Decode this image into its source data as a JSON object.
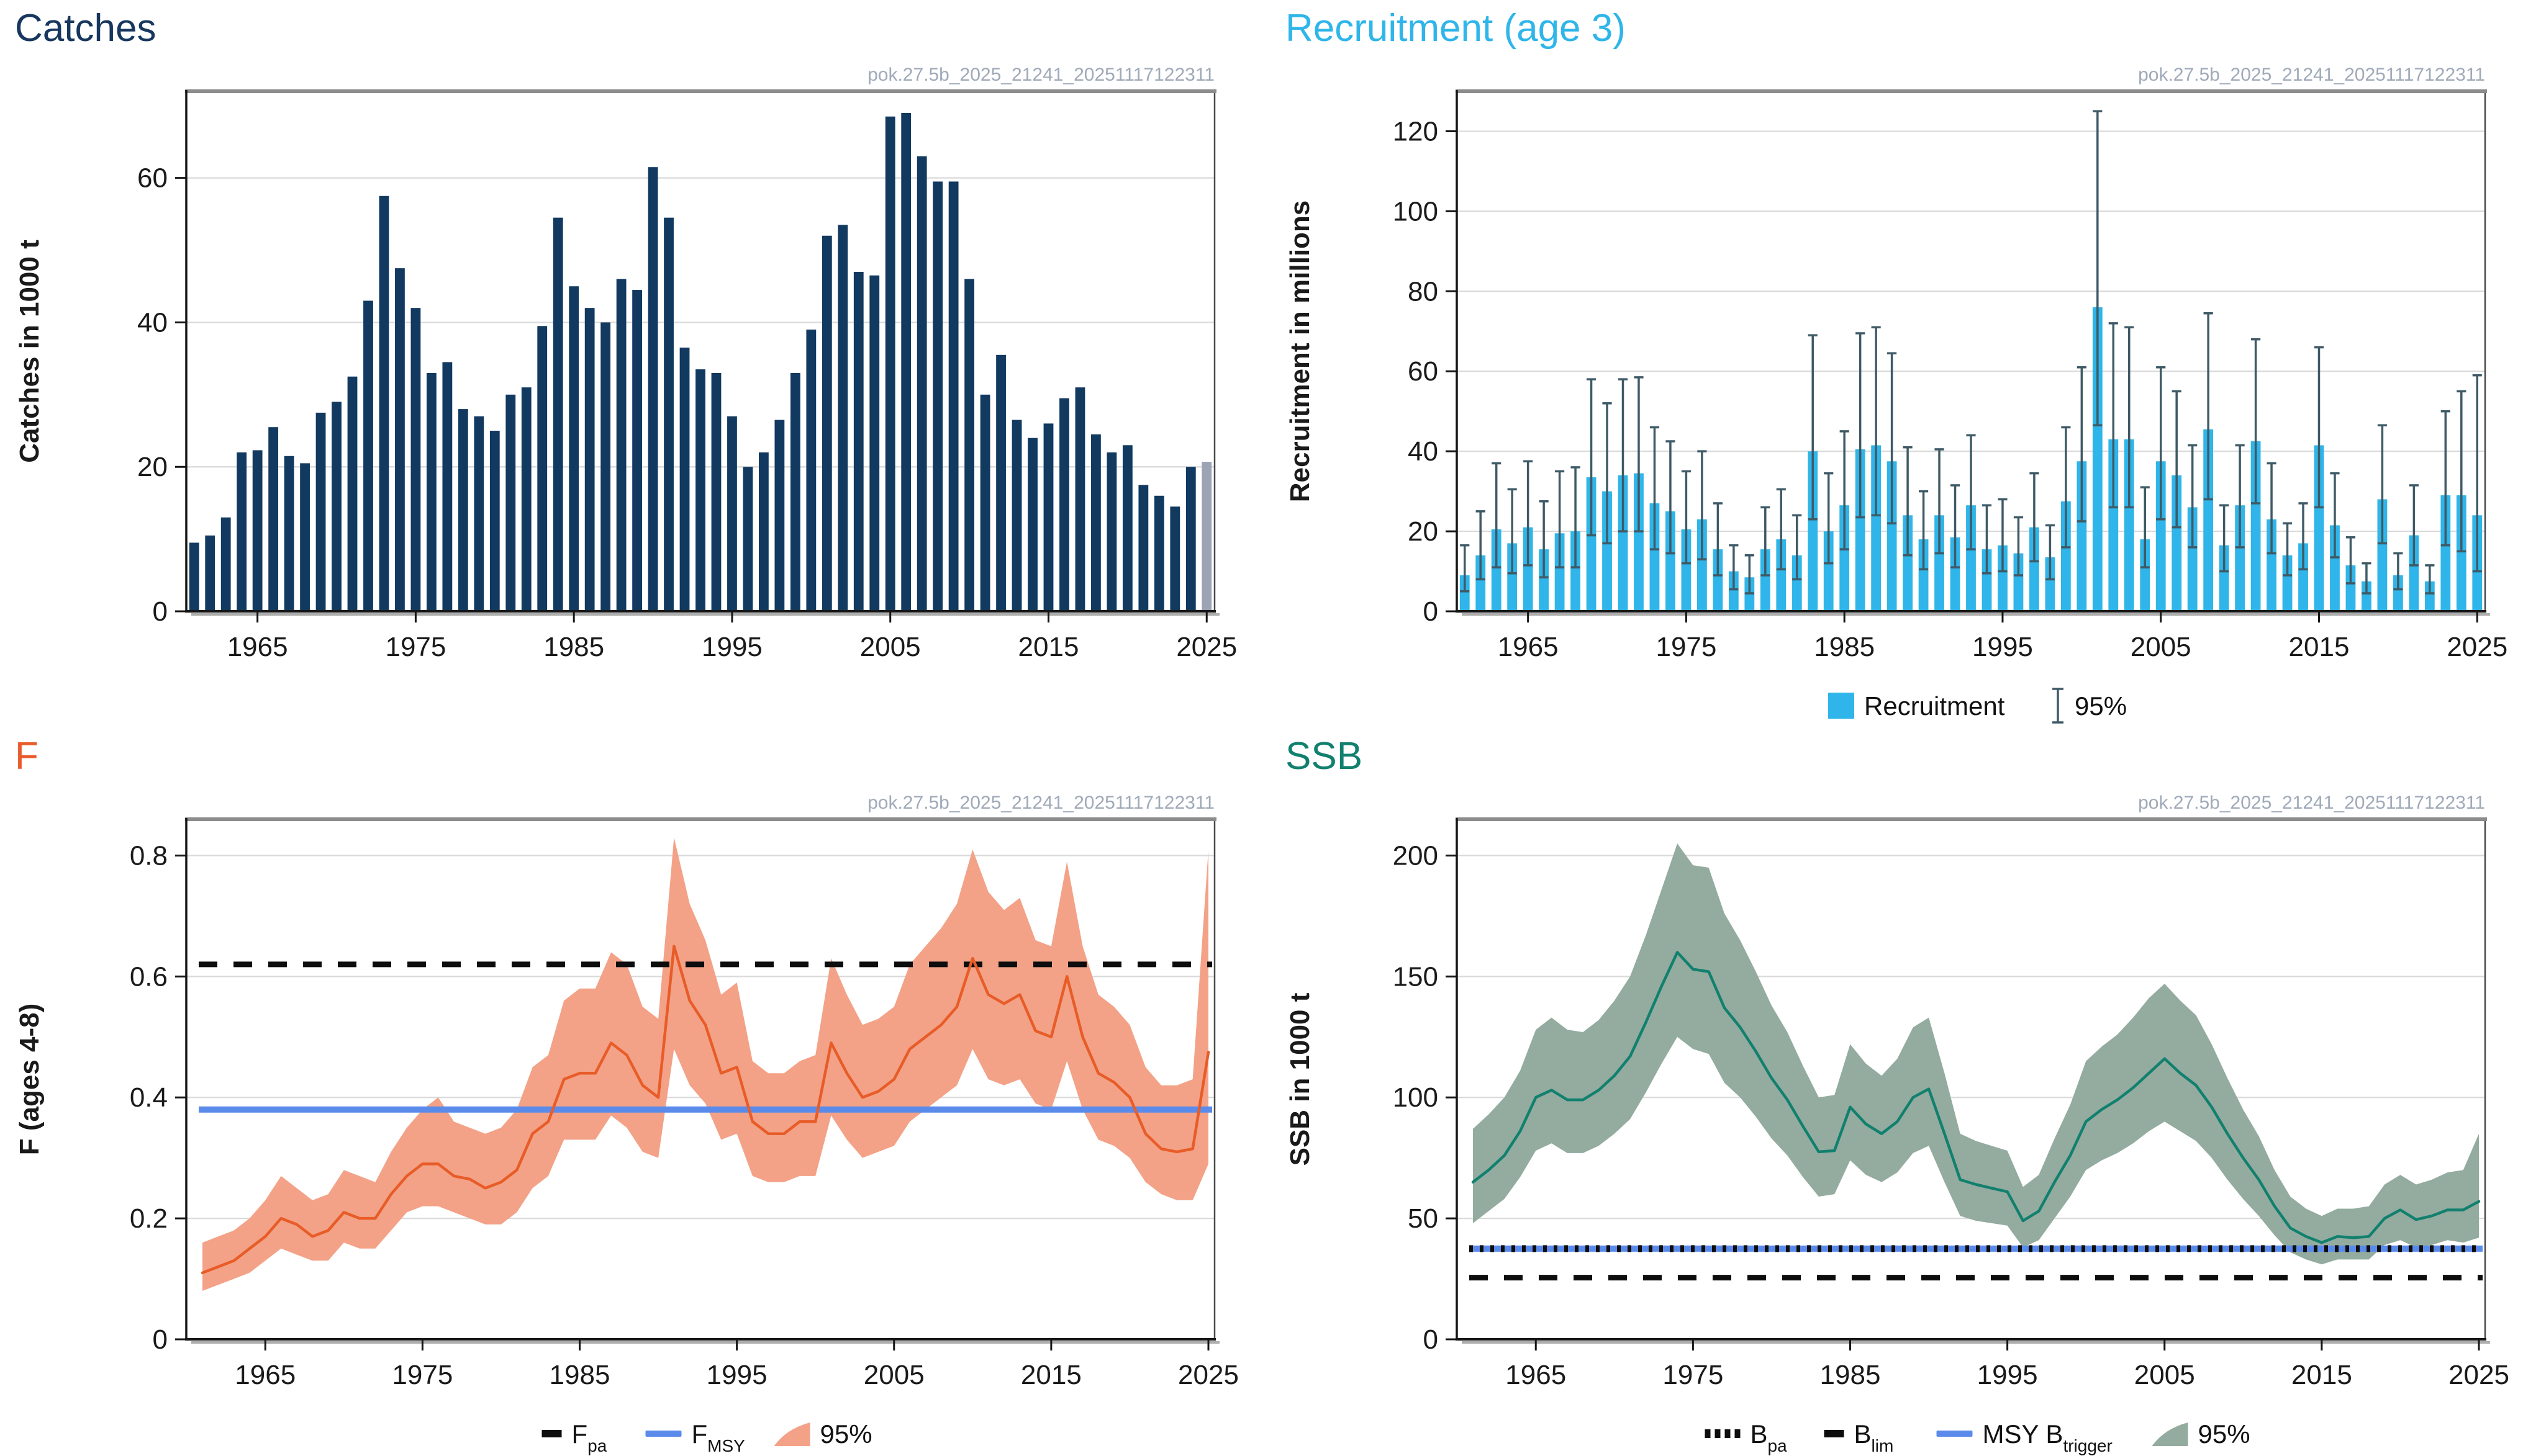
{
  "figure": {
    "watermark": "pok.27.5b_2025_21241_20251117122311"
  },
  "style": {
    "grid_color": "#D9D9D9",
    "axis_color": "#151515",
    "frame_color": "#4A4A4A",
    "frame_top_color": "#8C8C8C",
    "tick_text_color": "#1A1A1A",
    "watermark_color": "#9FA9B8",
    "legend_text_color": "#111111"
  },
  "panels": {
    "catches": {
      "title": "Catches",
      "title_color": "#17375E",
      "chart_data": {
        "type": "bar",
        "title": "Catches",
        "ylabel": "Catches in 1000 t",
        "xlabel": "",
        "year_start": 1961,
        "year_end": 2025,
        "categories_note": "years 1961-2025",
        "values": [
          9.5,
          10.5,
          13,
          22,
          22.3,
          25.5,
          21.5,
          20.5,
          27.5,
          29,
          32.5,
          43,
          57.5,
          47.5,
          42,
          33,
          34.5,
          28,
          27,
          25,
          30,
          31,
          39.5,
          54.5,
          45,
          42,
          40,
          46,
          44.5,
          61.5,
          54.5,
          36.5,
          33.5,
          33,
          27,
          20,
          22,
          26.5,
          33,
          39,
          52,
          53.5,
          47,
          46.5,
          68.5,
          69,
          63,
          59.5,
          59.5,
          46,
          30,
          35.5,
          26.5,
          24,
          26,
          29.5,
          31,
          24.5,
          22,
          23,
          17.5,
          16,
          14.5,
          20,
          20.7
        ],
        "bar_color": "#12395F",
        "final_bar_color": "#9BA3B5",
        "ylim": [
          0,
          72
        ],
        "yticks": [
          0,
          20,
          40,
          60
        ],
        "xticks": [
          1965,
          1975,
          1985,
          1995,
          2005,
          2015,
          2025
        ],
        "grid": true,
        "legend": []
      }
    },
    "recruitment": {
      "title": "Recruitment (age 3)",
      "title_color": "#2FB5E9",
      "chart_data": {
        "type": "bar-error",
        "title": "Recruitment (age 3)",
        "ylabel": "Recruitment in millions",
        "xlabel": "",
        "year_start": 1961,
        "year_end": 2025,
        "values": [
          9,
          14,
          20.5,
          17,
          21,
          15.5,
          19.5,
          20,
          33.5,
          30,
          34,
          34.5,
          27,
          25,
          20.5,
          23,
          15.5,
          10,
          8.5,
          15.5,
          18,
          14,
          40,
          20,
          26.5,
          40.5,
          41.5,
          37.5,
          24,
          18,
          24,
          18.5,
          26.5,
          15.5,
          16.5,
          14.5,
          21,
          13.5,
          27.5,
          37.5,
          76,
          43,
          43,
          18,
          37.5,
          34,
          26,
          45.5,
          16.5,
          26.5,
          42.5,
          23,
          14,
          17,
          41.5,
          21.5,
          11.5,
          7.5,
          28,
          9,
          19,
          7.5,
          29,
          29,
          24
        ],
        "ci_low": [
          5,
          8,
          11,
          9.5,
          11.5,
          8.5,
          11,
          11,
          19,
          17,
          20,
          20,
          15.5,
          14.5,
          12,
          13,
          9,
          5.5,
          4.5,
          9,
          10.5,
          8,
          23,
          12,
          15.5,
          23.5,
          24,
          22,
          14,
          10.5,
          14.5,
          11,
          15.5,
          9.5,
          10,
          9,
          12.5,
          8,
          16,
          22.5,
          46.5,
          26,
          26,
          11,
          23,
          21,
          16,
          28,
          10,
          16,
          27,
          14.5,
          9,
          10.5,
          26,
          13.5,
          7,
          4.5,
          17,
          5.5,
          11.5,
          4.5,
          16.5,
          15,
          10
        ],
        "ci_high": [
          16.5,
          25,
          37,
          30.5,
          37.5,
          27.5,
          35,
          36,
          58,
          52,
          58,
          58.5,
          46,
          42.5,
          35,
          40,
          27,
          16.5,
          14,
          26,
          30.5,
          24,
          69,
          34.5,
          45,
          69.5,
          71,
          64.5,
          41,
          30,
          40.5,
          31.5,
          44,
          26.5,
          28,
          23.5,
          34.5,
          21.5,
          46,
          61,
          125,
          72,
          71,
          31,
          61,
          55,
          41.5,
          74.5,
          26.5,
          41.5,
          68,
          37,
          22,
          27,
          66,
          34.5,
          18.5,
          12,
          46.5,
          14.5,
          31.5,
          11.5,
          50,
          55,
          59
        ],
        "bar_color": "#2FB5E9",
        "error_color": "#3E5A66",
        "ylim": [
          0,
          130
        ],
        "yticks": [
          0,
          20,
          40,
          60,
          80,
          100,
          120
        ],
        "xticks": [
          1965,
          1975,
          1985,
          1995,
          2005,
          2015,
          2025
        ],
        "grid": true,
        "legend": [
          {
            "icon": "swatch",
            "color": "#2FB5E9",
            "label": "Recruitment",
            "sub": ""
          },
          {
            "icon": "errbar",
            "color": "#3E5A66",
            "label": "95%",
            "sub": ""
          }
        ]
      }
    },
    "f": {
      "title": "F",
      "title_color": "#EA5B2B",
      "chart_data": {
        "type": "line-ribbon",
        "title": "F",
        "ylabel": "F (ages 4-8)",
        "xlabel": "",
        "year_start": 1961,
        "year_end": 2025,
        "values": [
          0.11,
          0.12,
          0.13,
          0.15,
          0.17,
          0.2,
          0.19,
          0.17,
          0.18,
          0.21,
          0.2,
          0.2,
          0.24,
          0.27,
          0.29,
          0.29,
          0.27,
          0.265,
          0.25,
          0.26,
          0.28,
          0.34,
          0.36,
          0.43,
          0.44,
          0.44,
          0.49,
          0.47,
          0.42,
          0.4,
          0.65,
          0.56,
          0.52,
          0.44,
          0.45,
          0.36,
          0.34,
          0.34,
          0.36,
          0.36,
          0.49,
          0.44,
          0.4,
          0.41,
          0.43,
          0.48,
          0.5,
          0.52,
          0.55,
          0.63,
          0.57,
          0.555,
          0.57,
          0.51,
          0.5,
          0.6,
          0.5,
          0.44,
          0.425,
          0.4,
          0.34,
          0.315,
          0.31,
          0.315,
          0.475
        ],
        "ci_low": [
          0.08,
          0.09,
          0.1,
          0.11,
          0.13,
          0.15,
          0.14,
          0.13,
          0.13,
          0.16,
          0.15,
          0.15,
          0.18,
          0.21,
          0.22,
          0.22,
          0.21,
          0.2,
          0.19,
          0.19,
          0.21,
          0.25,
          0.27,
          0.33,
          0.33,
          0.33,
          0.37,
          0.35,
          0.31,
          0.3,
          0.48,
          0.42,
          0.39,
          0.33,
          0.34,
          0.27,
          0.26,
          0.26,
          0.27,
          0.27,
          0.37,
          0.33,
          0.3,
          0.31,
          0.32,
          0.36,
          0.38,
          0.4,
          0.42,
          0.48,
          0.43,
          0.42,
          0.43,
          0.39,
          0.38,
          0.46,
          0.38,
          0.33,
          0.32,
          0.3,
          0.26,
          0.24,
          0.23,
          0.23,
          0.29
        ],
        "ci_high": [
          0.16,
          0.17,
          0.18,
          0.2,
          0.23,
          0.27,
          0.25,
          0.23,
          0.24,
          0.28,
          0.27,
          0.26,
          0.31,
          0.35,
          0.38,
          0.4,
          0.36,
          0.35,
          0.34,
          0.35,
          0.38,
          0.45,
          0.47,
          0.56,
          0.58,
          0.58,
          0.64,
          0.62,
          0.55,
          0.53,
          0.83,
          0.72,
          0.66,
          0.57,
          0.59,
          0.46,
          0.44,
          0.44,
          0.46,
          0.47,
          0.63,
          0.57,
          0.52,
          0.53,
          0.55,
          0.62,
          0.65,
          0.68,
          0.72,
          0.81,
          0.74,
          0.71,
          0.73,
          0.66,
          0.65,
          0.79,
          0.65,
          0.57,
          0.55,
          0.52,
          0.45,
          0.42,
          0.42,
          0.43,
          0.81
        ],
        "line_color": "#E85C28",
        "ribbon_color": "#F3A287",
        "ylim": [
          0,
          0.86
        ],
        "yticks": [
          0,
          0.2,
          0.4,
          0.6,
          0.8
        ],
        "xticks": [
          1965,
          1975,
          1985,
          1995,
          2005,
          2015,
          2025
        ],
        "grid": true,
        "ref_lines": [
          {
            "name": "F_pa",
            "value": 0.62,
            "style": "dashed",
            "color": "#0D0D0D",
            "width": 9
          },
          {
            "name": "F_MSY",
            "value": 0.38,
            "style": "solid",
            "color": "#5B8BEA",
            "width": 10
          }
        ],
        "legend": [
          {
            "icon": "dash",
            "color": "#0D0D0D",
            "label": "F",
            "sub": "pa"
          },
          {
            "icon": "line",
            "color": "#5B8BEA",
            "label": "F",
            "sub": "MSY"
          },
          {
            "icon": "wedge",
            "color": "#F3A287",
            "label": "95%",
            "sub": ""
          }
        ]
      }
    },
    "ssb": {
      "title": "SSB",
      "title_color": "#12806E",
      "chart_data": {
        "type": "line-ribbon",
        "title": "SSB",
        "ylabel": "SSB in 1000 t",
        "xlabel": "",
        "year_start": 1961,
        "year_end": 2025,
        "values": [
          65,
          70,
          76,
          86,
          100,
          103,
          99,
          99,
          103,
          109,
          117,
          131,
          146,
          160,
          153,
          152,
          137,
          129,
          119,
          108,
          99,
          88,
          77.5,
          78,
          96,
          89,
          85,
          90,
          100,
          103.5,
          85,
          66,
          64,
          62.5,
          61,
          49,
          53,
          65,
          76,
          90,
          95,
          99,
          104,
          110,
          116,
          110,
          105,
          96,
          85,
          75,
          66,
          55,
          46,
          42.5,
          40,
          42.5,
          42,
          42.5,
          50,
          53.5,
          49.5,
          51,
          53.5,
          53.5,
          57
        ],
        "ci_low": [
          48,
          53,
          58,
          67,
          78,
          81,
          77,
          77,
          80,
          85,
          91,
          102,
          114,
          125,
          120,
          118,
          106,
          100,
          92,
          83,
          76,
          67,
          59,
          60,
          74,
          68,
          65,
          69,
          77,
          80,
          65,
          51,
          49,
          48,
          47,
          38,
          41,
          50,
          59,
          70,
          74,
          77,
          81,
          86,
          90,
          86,
          82,
          75,
          66,
          58,
          51,
          43,
          36,
          33,
          31,
          33,
          33,
          33,
          39,
          41,
          38,
          39,
          41,
          40,
          42
        ],
        "ci_high": [
          87,
          93,
          100,
          111,
          128,
          133,
          128,
          127,
          132,
          140,
          150,
          167,
          186,
          205,
          196,
          195,
          176,
          165,
          152,
          138,
          127,
          113,
          100,
          101,
          122,
          114,
          109,
          116,
          129,
          133,
          110,
          85,
          82,
          80,
          78,
          63,
          68,
          83,
          97,
          115,
          121,
          126,
          133,
          141,
          147,
          140,
          134,
          122,
          108,
          95,
          84,
          70,
          59,
          54,
          51,
          54,
          54,
          55,
          64,
          68,
          64,
          66,
          69,
          70,
          85
        ],
        "line_color": "#12806E",
        "ribbon_color": "#93AC9F",
        "ylim": [
          0,
          215
        ],
        "yticks": [
          0,
          50,
          100,
          150,
          200
        ],
        "xticks": [
          1965,
          1975,
          1985,
          1995,
          2005,
          2015,
          2025
        ],
        "grid": true,
        "ref_lines": [
          {
            "name": "B_lim",
            "value": 25.5,
            "style": "dashed",
            "color": "#0D0D0D",
            "width": 9
          },
          {
            "name": "MSY B_trigger",
            "value": 37.5,
            "style": "solid",
            "color": "#5B8BEA",
            "width": 10
          },
          {
            "name": "B_pa",
            "value": 37.5,
            "style": "dotted",
            "color": "#0D0D0D",
            "width": 11
          }
        ],
        "legend": [
          {
            "icon": "dots",
            "color": "#0D0D0D",
            "label": "B",
            "sub": "pa"
          },
          {
            "icon": "dash",
            "color": "#0D0D0D",
            "label": "B",
            "sub": "lim"
          },
          {
            "icon": "line",
            "color": "#5B8BEA",
            "label": "MSY B",
            "sub": "trigger"
          },
          {
            "icon": "wedge",
            "color": "#93AC9F",
            "label": "95%",
            "sub": ""
          }
        ]
      }
    }
  }
}
